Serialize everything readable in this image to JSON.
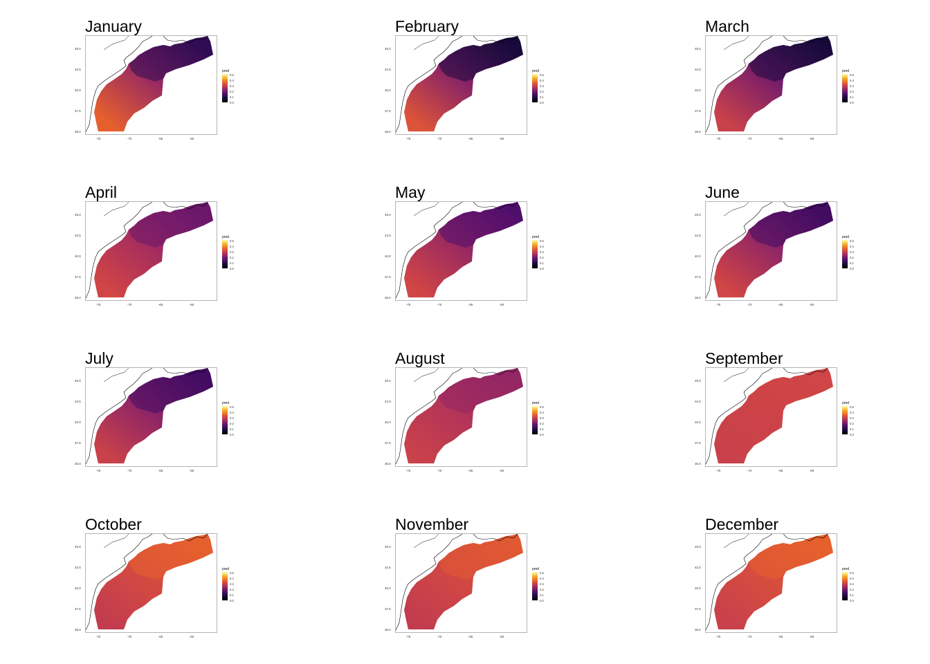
{
  "months": [
    "January",
    "February",
    "March",
    "April",
    "May",
    "June",
    "July",
    "August",
    "September",
    "October",
    "November",
    "December"
  ],
  "y_ticks": [
    "45.0",
    "42.5",
    "40.0",
    "37.5",
    "35.0"
  ],
  "x_ticks": [
    "-75",
    "-70",
    "-65",
    "-60"
  ],
  "legend": {
    "title": "pred",
    "labels": [
      "0.5",
      "0.4",
      "0.3",
      "0.2",
      "0.1",
      "0.0"
    ]
  },
  "colors": {
    "palette": [
      "#000004",
      "#1b0c41",
      "#4a0c6b",
      "#781c6d",
      "#a52c60",
      "#cf4446",
      "#ed6925",
      "#fb9b06",
      "#f7d13d",
      "#fcffa4"
    ],
    "land_outline": "#000000",
    "panel_border": "#b3b3b3"
  },
  "chart_data": [
    {
      "type": "heatmap",
      "title": "January",
      "legend_title": "pred",
      "xlim": [
        -76,
        -55
      ],
      "ylim": [
        35,
        47
      ],
      "colorbar_range": [
        0,
        0.5
      ],
      "approx_south_value": 0.32,
      "approx_north_value": 0.08
    },
    {
      "type": "heatmap",
      "title": "February",
      "legend_title": "pred",
      "xlim": [
        -76,
        -55
      ],
      "ylim": [
        35,
        47
      ],
      "colorbar_range": [
        0,
        0.5
      ],
      "approx_south_value": 0.3,
      "approx_north_value": 0.05
    },
    {
      "type": "heatmap",
      "title": "March",
      "legend_title": "pred",
      "xlim": [
        -76,
        -55
      ],
      "ylim": [
        35,
        47
      ],
      "colorbar_range": [
        0,
        0.5
      ],
      "approx_south_value": 0.27,
      "approx_north_value": 0.05
    },
    {
      "type": "heatmap",
      "title": "April",
      "legend_title": "pred",
      "xlim": [
        -76,
        -55
      ],
      "ylim": [
        35,
        47
      ],
      "colorbar_range": [
        0,
        0.5
      ],
      "approx_south_value": 0.28,
      "approx_north_value": 0.15
    },
    {
      "type": "heatmap",
      "title": "May",
      "legend_title": "pred",
      "xlim": [
        -76,
        -55
      ],
      "ylim": [
        35,
        47
      ],
      "colorbar_range": [
        0,
        0.5
      ],
      "approx_south_value": 0.28,
      "approx_north_value": 0.12
    },
    {
      "type": "heatmap",
      "title": "June",
      "legend_title": "pred",
      "xlim": [
        -76,
        -55
      ],
      "ylim": [
        35,
        47
      ],
      "colorbar_range": [
        0,
        0.5
      ],
      "approx_south_value": 0.28,
      "approx_north_value": 0.1
    },
    {
      "type": "heatmap",
      "title": "July",
      "legend_title": "pred",
      "xlim": [
        -76,
        -55
      ],
      "ylim": [
        35,
        47
      ],
      "colorbar_range": [
        0,
        0.5
      ],
      "approx_south_value": 0.27,
      "approx_north_value": 0.1
    },
    {
      "type": "heatmap",
      "title": "August",
      "legend_title": "pred",
      "xlim": [
        -76,
        -55
      ],
      "ylim": [
        35,
        47
      ],
      "colorbar_range": [
        0,
        0.5
      ],
      "approx_south_value": 0.27,
      "approx_north_value": 0.2
    },
    {
      "type": "heatmap",
      "title": "September",
      "legend_title": "pred",
      "xlim": [
        -76,
        -55
      ],
      "ylim": [
        35,
        47
      ],
      "colorbar_range": [
        0,
        0.5
      ],
      "approx_south_value": 0.27,
      "approx_north_value": 0.28
    },
    {
      "type": "heatmap",
      "title": "October",
      "legend_title": "pred",
      "xlim": [
        -76,
        -55
      ],
      "ylim": [
        35,
        47
      ],
      "colorbar_range": [
        0,
        0.5
      ],
      "approx_south_value": 0.26,
      "approx_north_value": 0.32
    },
    {
      "type": "heatmap",
      "title": "November",
      "legend_title": "pred",
      "xlim": [
        -76,
        -55
      ],
      "ylim": [
        35,
        47
      ],
      "colorbar_range": [
        0,
        0.5
      ],
      "approx_south_value": 0.26,
      "approx_north_value": 0.31
    },
    {
      "type": "heatmap",
      "title": "December",
      "legend_title": "pred",
      "xlim": [
        -76,
        -55
      ],
      "ylim": [
        35,
        47
      ],
      "colorbar_range": [
        0,
        0.5
      ],
      "approx_south_value": 0.27,
      "approx_north_value": 0.32
    }
  ]
}
